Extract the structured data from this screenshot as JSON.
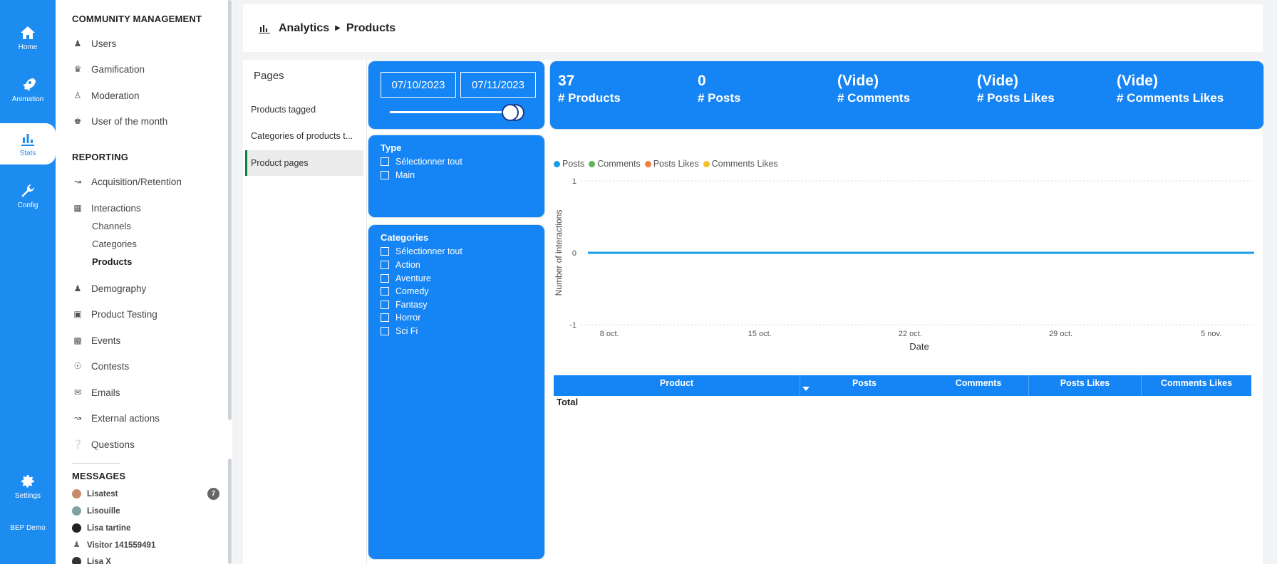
{
  "rail": {
    "home": "Home",
    "animation": "Animation",
    "stats": "Stats",
    "config": "Config",
    "settings": "Settings",
    "workspace": "BEP Demo"
  },
  "sidebar": {
    "community_title": "COMMUNITY MANAGEMENT",
    "community_items": [
      "Users",
      "Gamification",
      "Moderation",
      "User of the month"
    ],
    "reporting_title": "REPORTING",
    "reporting_items": {
      "acquisition": "Acquisition/Retention",
      "interactions": "Interactions",
      "sub_channels": "Channels",
      "sub_categories": "Categories",
      "sub_products": "Products",
      "demography": "Demography",
      "product_testing": "Product Testing",
      "events": "Events",
      "contests": "Contests",
      "emails": "Emails",
      "external": "External actions",
      "questions": "Questions"
    },
    "messages_title": "MESSAGES",
    "messages": [
      {
        "name": "Lisatest",
        "color": "#c58b6a"
      },
      {
        "name": "Lisouille",
        "color": "#7fa2a0"
      },
      {
        "name": "Lisa tartine",
        "color": "#222222"
      },
      {
        "name": "Visitor 141559491",
        "color": "#777777"
      },
      {
        "name": "Lisa X",
        "color": "#333333"
      }
    ],
    "badge": "7"
  },
  "header": {
    "section": "Analytics",
    "page": "Products"
  },
  "report": {
    "pages_title": "Pages",
    "pages": [
      "Products tagged",
      "Categories of products t...",
      "Product pages"
    ],
    "date_from": "07/10/2023",
    "date_to": "07/11/2023",
    "slider_position": 1.0,
    "type_slicer": {
      "title": "Type",
      "options": [
        "Sélectionner tout",
        "Main"
      ]
    },
    "categories_slicer": {
      "title": "Categories",
      "options": [
        "Sélectionner tout",
        "Action",
        "Aventure",
        "Comedy",
        "Fantasy",
        "Horror",
        "Sci Fi"
      ]
    },
    "kpis": [
      {
        "value": "37",
        "label": "# Products"
      },
      {
        "value": "0",
        "label": "# Posts"
      },
      {
        "value": "(Vide)",
        "label": "# Comments"
      },
      {
        "value": "(Vide)",
        "label": "# Posts Likes"
      },
      {
        "value": "(Vide)",
        "label": "# Comments Likes"
      }
    ],
    "table": {
      "columns": [
        "Product",
        "Posts",
        "Comments",
        "Posts Likes",
        "Comments Likes"
      ],
      "total_label": "Total"
    }
  },
  "colors": {
    "accent": "#1d8cf0",
    "card": "#1584f4"
  },
  "chart_data": {
    "type": "line",
    "xlabel": "Date",
    "ylabel": "Number of interactions",
    "x_ticks": [
      "8 oct.",
      "15 oct.",
      "22 oct.",
      "29 oct.",
      "5 nov."
    ],
    "y_ticks": [
      "1",
      "0",
      "-1"
    ],
    "ylim": [
      -1,
      1
    ],
    "legend_position": "top-left",
    "grid": true,
    "series": [
      {
        "name": "Posts",
        "color": "#1a9be6",
        "x": [
          "2023-10-07",
          "2023-11-07"
        ],
        "values": [
          0,
          0
        ]
      },
      {
        "name": "Comments",
        "color": "#5fb45a",
        "x": [],
        "values": []
      },
      {
        "name": "Posts Likes",
        "color": "#f07f3c",
        "x": [],
        "values": []
      },
      {
        "name": "Comments Likes",
        "color": "#f5c22d",
        "x": [],
        "values": []
      }
    ]
  }
}
